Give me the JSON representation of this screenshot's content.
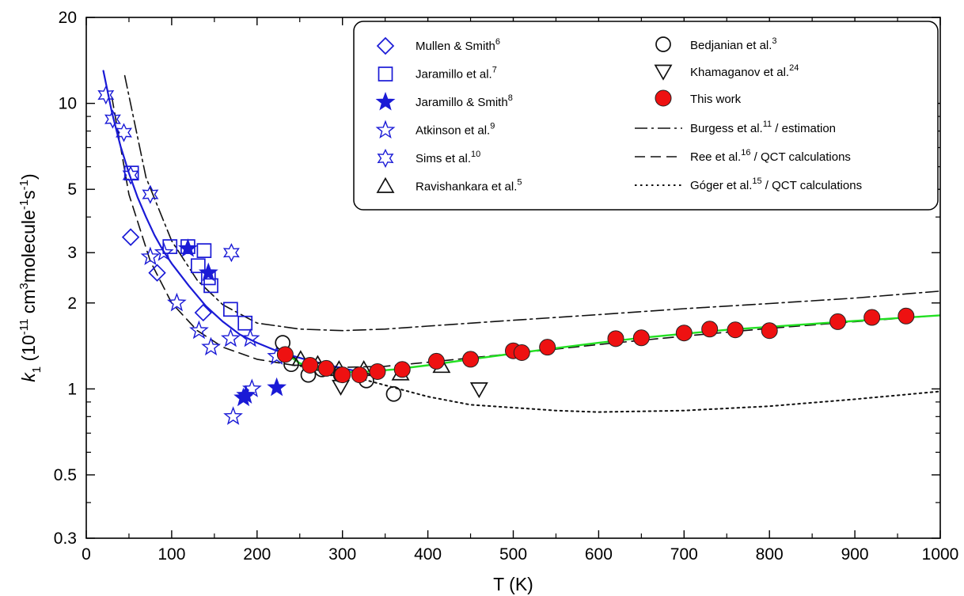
{
  "chart_data": {
    "type": "scatter",
    "title": "",
    "xlabel": "T (K)",
    "ylabel": {
      "k": "k",
      "k_sub": "1",
      "a": " (10",
      "a_sup": "-11",
      "b": " cm",
      "b_sup": "3",
      "c": "molecule",
      "c_sup": "-1",
      "d": "s",
      "d_sup": "-1",
      "e": ")"
    },
    "xlim": [
      0,
      1000
    ],
    "ylim": [
      0.3,
      20
    ],
    "yscale": "log",
    "grid": false,
    "legend_position": "top-right",
    "xticks": [
      "0",
      "100",
      "200",
      "300",
      "400",
      "500",
      "600",
      "700",
      "800",
      "900",
      "1000"
    ],
    "yticks": [
      {
        "value": 0.3,
        "label": "0.3"
      },
      {
        "value": 0.5,
        "label": "0.5"
      },
      {
        "value": 1,
        "label": "1"
      },
      {
        "value": 2,
        "label": "2"
      },
      {
        "value": 3,
        "label": "3"
      },
      {
        "value": 5,
        "label": "5"
      },
      {
        "value": 10,
        "label": "10"
      },
      {
        "value": 20,
        "label": "20"
      }
    ],
    "yminor": [
      0.4,
      0.6,
      0.7,
      0.8,
      0.9,
      4,
      6,
      7,
      8,
      9
    ],
    "xminor": [
      50,
      150,
      250,
      350,
      450,
      550,
      650,
      750,
      850,
      950
    ],
    "series": [
      {
        "name": "Mullen & Smith",
        "ref": "6",
        "marker": "diamond",
        "color": "#1a1ad6",
        "filled": false,
        "points": [
          [
            52,
            3.4
          ],
          [
            83,
            2.55
          ],
          [
            137,
            1.85
          ]
        ]
      },
      {
        "name": "Jaramillo et al.",
        "ref": "7",
        "marker": "square",
        "color": "#1a1ad6",
        "filled": false,
        "points": [
          [
            53,
            5.7
          ],
          [
            98,
            3.15
          ],
          [
            119,
            3.15
          ],
          [
            131,
            2.7
          ],
          [
            138,
            3.05
          ],
          [
            143,
            2.45
          ],
          [
            146,
            2.3
          ],
          [
            169,
            1.9
          ],
          [
            186,
            1.7
          ]
        ]
      },
      {
        "name": "Jaramillo & Smith",
        "ref": "8",
        "marker": "star5",
        "color": "#1a1ad6",
        "filled": true,
        "points": [
          [
            119,
            3.1
          ],
          [
            143,
            2.55
          ],
          [
            184,
            0.93
          ],
          [
            187,
            0.95
          ],
          [
            223,
            1.01
          ]
        ]
      },
      {
        "name": "Atkinson et al.",
        "ref": "9",
        "marker": "star5",
        "color": "#1a1ad6",
        "filled": false,
        "points": [
          [
            75,
            2.9
          ],
          [
            91,
            3.0
          ],
          [
            106,
            2.0
          ],
          [
            132,
            1.6
          ],
          [
            146,
            1.4
          ],
          [
            169,
            1.5
          ],
          [
            172,
            0.8
          ],
          [
            192,
            1.5
          ],
          [
            194,
            1.0
          ],
          [
            223,
            1.3
          ]
        ]
      },
      {
        "name": "Sims et al.",
        "ref": "10",
        "marker": "star6",
        "color": "#1a1ad6",
        "filled": false,
        "points": [
          [
            23,
            10.7
          ],
          [
            31,
            8.8
          ],
          [
            44,
            7.9
          ],
          [
            52,
            5.6
          ],
          [
            75,
            4.8
          ],
          [
            170,
            3.0
          ]
        ]
      },
      {
        "name": "Ravishankara et al.",
        "ref": "5",
        "marker": "triangle",
        "color": "#111111",
        "filled": false,
        "points": [
          [
            251,
            1.27
          ],
          [
            271,
            1.22
          ],
          [
            296,
            1.17
          ],
          [
            325,
            1.17
          ],
          [
            368,
            1.13
          ],
          [
            416,
            1.2
          ]
        ]
      },
      {
        "name": "Bedjanian et al.",
        "ref": "3",
        "marker": "circle",
        "color": "#111111",
        "filled": false,
        "points": [
          [
            230,
            1.45
          ],
          [
            240,
            1.22
          ],
          [
            260,
            1.12
          ],
          [
            276,
            1.17
          ],
          [
            298,
            1.12
          ],
          [
            328,
            1.07
          ],
          [
            360,
            0.96
          ]
        ]
      },
      {
        "name": "Khamaganov et al.",
        "ref": "24",
        "marker": "triangle-down",
        "color": "#111111",
        "filled": false,
        "points": [
          [
            298,
            1.02
          ],
          [
            460,
            1.0
          ]
        ]
      },
      {
        "name": "This work",
        "ref": "",
        "marker": "circle",
        "color": "#ee1111",
        "filled": true,
        "points": [
          [
            233,
            1.32
          ],
          [
            262,
            1.21
          ],
          [
            281,
            1.18
          ],
          [
            300,
            1.12
          ],
          [
            320,
            1.12
          ],
          [
            341,
            1.15
          ],
          [
            370,
            1.17
          ],
          [
            410,
            1.25
          ],
          [
            450,
            1.27
          ],
          [
            500,
            1.36
          ],
          [
            510,
            1.34
          ],
          [
            540,
            1.4
          ],
          [
            620,
            1.5
          ],
          [
            650,
            1.51
          ],
          [
            700,
            1.57
          ],
          [
            730,
            1.62
          ],
          [
            760,
            1.61
          ],
          [
            800,
            1.6
          ],
          [
            880,
            1.72
          ],
          [
            920,
            1.78
          ],
          [
            960,
            1.8
          ]
        ]
      }
    ],
    "lines": [
      {
        "name": "Burgess et al.",
        "ref": "11",
        "suffix": " / estimation",
        "style": "dashdot",
        "color": "#111111",
        "width": 1.6,
        "points": [
          [
            45,
            12.5
          ],
          [
            70,
            5.5
          ],
          [
            100,
            3.3
          ],
          [
            130,
            2.4
          ],
          [
            160,
            1.97
          ],
          [
            200,
            1.7
          ],
          [
            250,
            1.62
          ],
          [
            300,
            1.6
          ],
          [
            350,
            1.62
          ],
          [
            400,
            1.66
          ],
          [
            500,
            1.74
          ],
          [
            600,
            1.82
          ],
          [
            700,
            1.91
          ],
          [
            800,
            1.99
          ],
          [
            900,
            2.08
          ],
          [
            1000,
            2.2
          ]
        ]
      },
      {
        "name": "Ree et al.",
        "ref": "16",
        "suffix": " / QCT calculations",
        "style": "dashed",
        "color": "#111111",
        "width": 1.6,
        "points": [
          [
            30,
            10.5
          ],
          [
            50,
            4.8
          ],
          [
            75,
            2.8
          ],
          [
            100,
            2.0
          ],
          [
            130,
            1.6
          ],
          [
            160,
            1.4
          ],
          [
            200,
            1.27
          ],
          [
            250,
            1.2
          ],
          [
            300,
            1.19
          ],
          [
            350,
            1.2
          ],
          [
            400,
            1.24
          ],
          [
            500,
            1.33
          ],
          [
            600,
            1.43
          ],
          [
            700,
            1.53
          ],
          [
            800,
            1.63
          ],
          [
            900,
            1.72
          ],
          [
            1000,
            1.81
          ]
        ]
      },
      {
        "name": "Góger et al.",
        "ref": "15",
        "suffix": " / QCT calculations",
        "style": "dotted",
        "color": "#111111",
        "width": 2,
        "points": [
          [
            300,
            1.13
          ],
          [
            350,
            1.03
          ],
          [
            400,
            0.94
          ],
          [
            450,
            0.88
          ],
          [
            500,
            0.86
          ],
          [
            550,
            0.84
          ],
          [
            600,
            0.83
          ],
          [
            700,
            0.84
          ],
          [
            800,
            0.87
          ],
          [
            900,
            0.92
          ],
          [
            1000,
            0.98
          ]
        ]
      },
      {
        "name": "",
        "ref": "",
        "suffix": "",
        "style": "solid",
        "color": "#1a1ad6",
        "width": 2.2,
        "legend": false,
        "points": [
          [
            20,
            13.0
          ],
          [
            30,
            9.3
          ],
          [
            40,
            7.1
          ],
          [
            50,
            5.7
          ],
          [
            60,
            4.7
          ],
          [
            70,
            4.0
          ],
          [
            80,
            3.45
          ],
          [
            90,
            3.05
          ],
          [
            100,
            2.75
          ],
          [
            120,
            2.3
          ],
          [
            140,
            1.95
          ],
          [
            160,
            1.72
          ],
          [
            180,
            1.55
          ],
          [
            200,
            1.45
          ],
          [
            220,
            1.37
          ],
          [
            240,
            1.31
          ],
          [
            260,
            1.26
          ],
          [
            280,
            1.22
          ],
          [
            300,
            1.18
          ],
          [
            320,
            1.15
          ]
        ]
      },
      {
        "name": "",
        "ref": "",
        "suffix": "",
        "style": "solid",
        "color": "#22e022",
        "width": 2.4,
        "legend": false,
        "points": [
          [
            230,
            1.35
          ],
          [
            250,
            1.23
          ],
          [
            270,
            1.18
          ],
          [
            290,
            1.15
          ],
          [
            310,
            1.145
          ],
          [
            330,
            1.15
          ],
          [
            360,
            1.17
          ],
          [
            400,
            1.21
          ],
          [
            450,
            1.27
          ],
          [
            500,
            1.33
          ],
          [
            550,
            1.39
          ],
          [
            600,
            1.45
          ],
          [
            650,
            1.51
          ],
          [
            700,
            1.56
          ],
          [
            750,
            1.61
          ],
          [
            800,
            1.65
          ],
          [
            850,
            1.69
          ],
          [
            900,
            1.73
          ],
          [
            950,
            1.77
          ],
          [
            1000,
            1.81
          ]
        ]
      }
    ]
  }
}
